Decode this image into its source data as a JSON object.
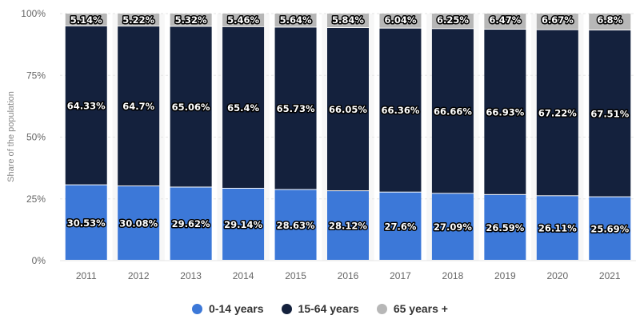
{
  "chart_data": {
    "type": "bar",
    "stacked": true,
    "categories": [
      "2011",
      "2012",
      "2013",
      "2014",
      "2015",
      "2016",
      "2017",
      "2018",
      "2019",
      "2020",
      "2021"
    ],
    "series": [
      {
        "name": "0-14 years",
        "color": "#3c78d8",
        "values": [
          30.53,
          30.08,
          29.62,
          29.14,
          28.63,
          28.12,
          27.6,
          27.09,
          26.59,
          26.11,
          25.69
        ],
        "labels": [
          "30.53%",
          "30.08%",
          "29.62%",
          "29.14%",
          "28.63%",
          "28.12%",
          "27.6%",
          "27.09%",
          "26.59%",
          "26.11%",
          "25.69%"
        ]
      },
      {
        "name": "15-64 years",
        "color": "#14213d",
        "values": [
          64.33,
          64.7,
          65.06,
          65.4,
          65.73,
          66.05,
          66.36,
          66.66,
          66.93,
          67.22,
          67.51
        ],
        "labels": [
          "64.33%",
          "64.7%",
          "65.06%",
          "65.4%",
          "65.73%",
          "66.05%",
          "66.36%",
          "66.66%",
          "66.93%",
          "67.22%",
          "67.51%"
        ]
      },
      {
        "name": "65 years +",
        "color": "#b7b7b7",
        "values": [
          5.14,
          5.22,
          5.32,
          5.46,
          5.64,
          5.84,
          6.04,
          6.25,
          6.47,
          6.67,
          6.8
        ],
        "labels": [
          "5.14%",
          "5.22%",
          "5.32%",
          "5.46%",
          "5.64%",
          "5.84%",
          "6.04%",
          "6.25%",
          "6.47%",
          "6.67%",
          "6.8%"
        ]
      }
    ],
    "title": "",
    "xlabel": "",
    "ylabel": "Share of the population",
    "ylim": [
      0,
      100
    ],
    "yticks": [
      "0%",
      "25%",
      "50%",
      "75%",
      "100%"
    ],
    "legend_position": "bottom",
    "grid": true
  },
  "legend": [
    {
      "label": "0-14 years",
      "color": "#3c78d8"
    },
    {
      "label": "15-64 years",
      "color": "#14213d"
    },
    {
      "label": "65 years +",
      "color": "#b7b7b7"
    }
  ]
}
